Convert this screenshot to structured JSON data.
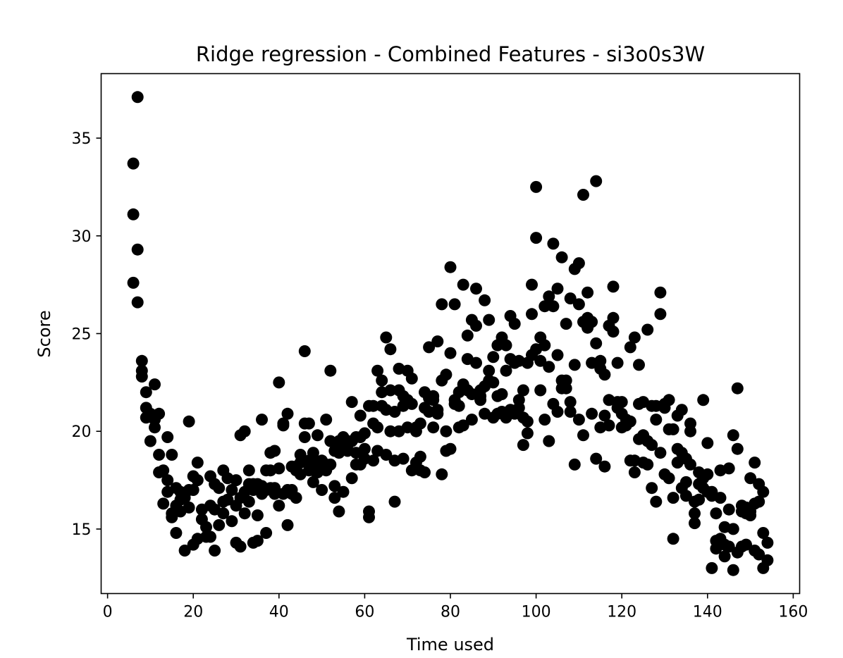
{
  "chart_data": {
    "type": "scatter",
    "title": "Ridge regression - Combined Features - si3o0s3W",
    "xlabel": "Time used",
    "ylabel": "Score",
    "xlim": [
      -1.5,
      161.5
    ],
    "ylim": [
      11.7,
      38.3
    ],
    "xticks": [
      0,
      20,
      40,
      60,
      80,
      100,
      120,
      140,
      160
    ],
    "yticks": [
      15,
      20,
      25,
      30,
      35
    ],
    "xtick_labels": [
      "0",
      "20",
      "40",
      "60",
      "80",
      "100",
      "120",
      "140",
      "160"
    ],
    "ytick_labels": [
      "15",
      "20",
      "25",
      "30",
      "35"
    ],
    "grid": false,
    "marker_color": "#000000",
    "points": [
      [
        7,
        37.1
      ],
      [
        6,
        33.7
      ],
      [
        6,
        31.1
      ],
      [
        7,
        29.3
      ],
      [
        6,
        27.6
      ],
      [
        7,
        26.6
      ],
      [
        8,
        23.6
      ],
      [
        8,
        23.1
      ],
      [
        8,
        22.8
      ],
      [
        9,
        22.0
      ],
      [
        9,
        21.2
      ],
      [
        9,
        20.7
      ],
      [
        10,
        19.5
      ],
      [
        10,
        20.9
      ],
      [
        11,
        22.4
      ],
      [
        11,
        20.6
      ],
      [
        11,
        20.2
      ],
      [
        12,
        20.9
      ],
      [
        12,
        18.8
      ],
      [
        12,
        17.9
      ],
      [
        13,
        18.0
      ],
      [
        13,
        16.3
      ],
      [
        14,
        16.9
      ],
      [
        14,
        17.5
      ],
      [
        14,
        19.7
      ],
      [
        15,
        18.8
      ],
      [
        15,
        15.8
      ],
      [
        15,
        15.6
      ],
      [
        16,
        16.2
      ],
      [
        16,
        14.8
      ],
      [
        16,
        17.1
      ],
      [
        17,
        16.5
      ],
      [
        17,
        15.9
      ],
      [
        17,
        16.9
      ],
      [
        18,
        16.6
      ],
      [
        18,
        13.9
      ],
      [
        19,
        17.0
      ],
      [
        19,
        16.1
      ],
      [
        19,
        20.5
      ],
      [
        20,
        17.7
      ],
      [
        20,
        17.0
      ],
      [
        20,
        14.2
      ],
      [
        21,
        18.4
      ],
      [
        21,
        17.5
      ],
      [
        21,
        14.5
      ],
      [
        22,
        15.5
      ],
      [
        22,
        16.0
      ],
      [
        23,
        15.1
      ],
      [
        23,
        14.6
      ],
      [
        24,
        16.2
      ],
      [
        24,
        17.7
      ],
      [
        24,
        14.6
      ],
      [
        25,
        16.0
      ],
      [
        25,
        13.9
      ],
      [
        25,
        17.3
      ],
      [
        26,
        17.1
      ],
      [
        26,
        15.2
      ],
      [
        27,
        16.4
      ],
      [
        27,
        18.0
      ],
      [
        27,
        15.8
      ],
      [
        28,
        16.5
      ],
      [
        28,
        17.6
      ],
      [
        29,
        17.0
      ],
      [
        29,
        15.4
      ],
      [
        30,
        17.5
      ],
      [
        30,
        16.2
      ],
      [
        30,
        14.3
      ],
      [
        31,
        16.6
      ],
      [
        31,
        19.8
      ],
      [
        31,
        14.1
      ],
      [
        32,
        20.0
      ],
      [
        32,
        16.9
      ],
      [
        32,
        15.8
      ],
      [
        33,
        18.0
      ],
      [
        33,
        17.3
      ],
      [
        33,
        16.4
      ],
      [
        34,
        17.0
      ],
      [
        34,
        14.3
      ],
      [
        34,
        17.3
      ],
      [
        35,
        15.7
      ],
      [
        35,
        14.4
      ],
      [
        35,
        17.3
      ],
      [
        36,
        20.6
      ],
      [
        36,
        17.2
      ],
      [
        36,
        16.8
      ],
      [
        37,
        18.0
      ],
      [
        37,
        14.8
      ],
      [
        37,
        17.0
      ],
      [
        38,
        18.9
      ],
      [
        38,
        18.0
      ],
      [
        38,
        17.1
      ],
      [
        39,
        19.0
      ],
      [
        39,
        17.1
      ],
      [
        39,
        16.8
      ],
      [
        40,
        22.5
      ],
      [
        40,
        18.1
      ],
      [
        40,
        16.2
      ],
      [
        41,
        20.3
      ],
      [
        41,
        20.4
      ],
      [
        41,
        16.8
      ],
      [
        42,
        20.9
      ],
      [
        42,
        17.0
      ],
      [
        42,
        15.2
      ],
      [
        43,
        18.2
      ],
      [
        43,
        16.8
      ],
      [
        43,
        17.0
      ],
      [
        44,
        16.6
      ],
      [
        44,
        18.0
      ],
      [
        44,
        18.2
      ],
      [
        45,
        18.4
      ],
      [
        45,
        18.8
      ],
      [
        45,
        17.8
      ],
      [
        46,
        24.1
      ],
      [
        46,
        20.4
      ],
      [
        46,
        19.7
      ],
      [
        47,
        20.4
      ],
      [
        47,
        18.0
      ],
      [
        47,
        18.5
      ],
      [
        48,
        18.9
      ],
      [
        48,
        17.4
      ],
      [
        48,
        18.0
      ],
      [
        49,
        19.8
      ],
      [
        49,
        18.4
      ],
      [
        49,
        17.9
      ],
      [
        50,
        18.5
      ],
      [
        50,
        17.0
      ],
      [
        50,
        18.2
      ],
      [
        51,
        20.6
      ],
      [
        51,
        18.3
      ],
      [
        51,
        18.0
      ],
      [
        52,
        23.1
      ],
      [
        52,
        19.5
      ],
      [
        52,
        18.3
      ],
      [
        53,
        19.0
      ],
      [
        53,
        17.2
      ],
      [
        53,
        16.6
      ],
      [
        54,
        19.5
      ],
      [
        54,
        18.9
      ],
      [
        54,
        15.9
      ],
      [
        55,
        19.4
      ],
      [
        55,
        19.7
      ],
      [
        55,
        16.9
      ],
      [
        56,
        19.5
      ],
      [
        56,
        19.3
      ],
      [
        56,
        19.0
      ],
      [
        57,
        21.5
      ],
      [
        57,
        19.5
      ],
      [
        57,
        17.6
      ],
      [
        58,
        19.7
      ],
      [
        58,
        18.9
      ],
      [
        58,
        18.3
      ],
      [
        59,
        20.8
      ],
      [
        59,
        19.7
      ],
      [
        59,
        18.3
      ],
      [
        60,
        19.9
      ],
      [
        60,
        19.1
      ],
      [
        60,
        18.6
      ],
      [
        61,
        21.3
      ],
      [
        61,
        15.6
      ],
      [
        61,
        15.9
      ],
      [
        62,
        21.3
      ],
      [
        62,
        20.4
      ],
      [
        62,
        18.5
      ],
      [
        63,
        23.1
      ],
      [
        63,
        20.2
      ],
      [
        63,
        19.0
      ],
      [
        64,
        22.6
      ],
      [
        64,
        22.0
      ],
      [
        64,
        21.3
      ],
      [
        65,
        24.8
      ],
      [
        65,
        21.1
      ],
      [
        65,
        18.8
      ],
      [
        66,
        24.2
      ],
      [
        66,
        22.1
      ],
      [
        66,
        20.0
      ],
      [
        67,
        21.0
      ],
      [
        67,
        18.5
      ],
      [
        67,
        16.4
      ],
      [
        68,
        23.2
      ],
      [
        68,
        22.1
      ],
      [
        68,
        20.0
      ],
      [
        69,
        21.8
      ],
      [
        69,
        18.6
      ],
      [
        69,
        21.3
      ],
      [
        70,
        23.1
      ],
      [
        70,
        21.6
      ],
      [
        70,
        20.2
      ],
      [
        71,
        22.7
      ],
      [
        71,
        21.4
      ],
      [
        71,
        18.0
      ],
      [
        72,
        20.0
      ],
      [
        72,
        20.2
      ],
      [
        72,
        18.4
      ],
      [
        73,
        20.4
      ],
      [
        73,
        18.7
      ],
      [
        73,
        18.0
      ],
      [
        74,
        22.0
      ],
      [
        74,
        21.2
      ],
      [
        74,
        17.9
      ],
      [
        75,
        24.3
      ],
      [
        75,
        21.7
      ],
      [
        75,
        21.0
      ],
      [
        76,
        21.6
      ],
      [
        76,
        21.8
      ],
      [
        76,
        20.2
      ],
      [
        77,
        24.6
      ],
      [
        77,
        21.1
      ],
      [
        77,
        20.9
      ],
      [
        78,
        26.5
      ],
      [
        78,
        22.6
      ],
      [
        78,
        17.8
      ],
      [
        79,
        22.9
      ],
      [
        79,
        20.0
      ],
      [
        79,
        19.0
      ],
      [
        80,
        28.4
      ],
      [
        80,
        24.0
      ],
      [
        80,
        19.1
      ],
      [
        81,
        26.5
      ],
      [
        81,
        21.6
      ],
      [
        81,
        21.4
      ],
      [
        82,
        22.0
      ],
      [
        82,
        21.3
      ],
      [
        82,
        20.2
      ],
      [
        83,
        27.5
      ],
      [
        83,
        22.4
      ],
      [
        83,
        20.3
      ],
      [
        84,
        24.9
      ],
      [
        84,
        23.7
      ],
      [
        84,
        22.1
      ],
      [
        85,
        25.7
      ],
      [
        85,
        21.9
      ],
      [
        85,
        20.6
      ],
      [
        86,
        27.3
      ],
      [
        86,
        25.4
      ],
      [
        86,
        23.5
      ],
      [
        87,
        22.1
      ],
      [
        87,
        21.8
      ],
      [
        87,
        21.6
      ],
      [
        88,
        26.7
      ],
      [
        88,
        22.3
      ],
      [
        88,
        20.9
      ],
      [
        89,
        25.7
      ],
      [
        89,
        23.1
      ],
      [
        89,
        22.6
      ],
      [
        90,
        23.8
      ],
      [
        90,
        22.5
      ],
      [
        90,
        20.7
      ],
      [
        91,
        24.4
      ],
      [
        91,
        21.8
      ],
      [
        91,
        20.9
      ],
      [
        92,
        24.8
      ],
      [
        92,
        21.9
      ],
      [
        92,
        21.0
      ],
      [
        93,
        24.4
      ],
      [
        93,
        23.1
      ],
      [
        93,
        20.7
      ],
      [
        94,
        25.9
      ],
      [
        94,
        23.7
      ],
      [
        94,
        21.1
      ],
      [
        95,
        25.5
      ],
      [
        95,
        23.5
      ],
      [
        95,
        20.9
      ],
      [
        96,
        23.6
      ],
      [
        96,
        21.6
      ],
      [
        96,
        21.2
      ],
      [
        97,
        22.1
      ],
      [
        97,
        20.7
      ],
      [
        97,
        19.3
      ],
      [
        98,
        23.5
      ],
      [
        98,
        20.5
      ],
      [
        98,
        19.9
      ],
      [
        99,
        27.5
      ],
      [
        99,
        26.0
      ],
      [
        99,
        23.9
      ],
      [
        100,
        32.5
      ],
      [
        100,
        29.9
      ],
      [
        100,
        24.2
      ],
      [
        101,
        24.8
      ],
      [
        101,
        23.6
      ],
      [
        101,
        22.1
      ],
      [
        102,
        26.4
      ],
      [
        102,
        24.4
      ],
      [
        102,
        20.6
      ],
      [
        103,
        26.9
      ],
      [
        103,
        23.3
      ],
      [
        103,
        19.5
      ],
      [
        104,
        29.6
      ],
      [
        104,
        26.4
      ],
      [
        104,
        21.4
      ],
      [
        105,
        27.3
      ],
      [
        105,
        23.9
      ],
      [
        105,
        21.0
      ],
      [
        106,
        28.9
      ],
      [
        106,
        22.6
      ],
      [
        106,
        22.2
      ],
      [
        107,
        25.5
      ],
      [
        107,
        22.6
      ],
      [
        107,
        22.2
      ],
      [
        108,
        26.8
      ],
      [
        108,
        21.5
      ],
      [
        108,
        21.0
      ],
      [
        109,
        28.3
      ],
      [
        109,
        23.4
      ],
      [
        109,
        18.3
      ],
      [
        110,
        28.6
      ],
      [
        110,
        26.5
      ],
      [
        110,
        20.6
      ],
      [
        111,
        32.1
      ],
      [
        111,
        25.6
      ],
      [
        111,
        19.8
      ],
      [
        112,
        27.1
      ],
      [
        112,
        25.8
      ],
      [
        112,
        25.3
      ],
      [
        113,
        25.6
      ],
      [
        113,
        23.5
      ],
      [
        113,
        20.9
      ],
      [
        114,
        32.8
      ],
      [
        114,
        24.5
      ],
      [
        114,
        18.6
      ],
      [
        115,
        23.6
      ],
      [
        115,
        23.2
      ],
      [
        115,
        20.2
      ],
      [
        116,
        22.9
      ],
      [
        116,
        20.8
      ],
      [
        116,
        18.2
      ],
      [
        117,
        25.4
      ],
      [
        117,
        21.6
      ],
      [
        117,
        20.3
      ],
      [
        118,
        27.4
      ],
      [
        118,
        25.8
      ],
      [
        118,
        25.1
      ],
      [
        119,
        23.5
      ],
      [
        119,
        21.5
      ],
      [
        119,
        21.2
      ],
      [
        120,
        21.5
      ],
      [
        120,
        20.9
      ],
      [
        120,
        20.2
      ],
      [
        121,
        20.6
      ],
      [
        121,
        20.3
      ],
      [
        121,
        20.4
      ],
      [
        122,
        24.3
      ],
      [
        122,
        18.5
      ],
      [
        122,
        20.5
      ],
      [
        123,
        24.8
      ],
      [
        123,
        18.5
      ],
      [
        123,
        17.9
      ],
      [
        124,
        23.4
      ],
      [
        124,
        21.4
      ],
      [
        124,
        19.6
      ],
      [
        125,
        21.5
      ],
      [
        125,
        19.8
      ],
      [
        125,
        18.4
      ],
      [
        126,
        25.2
      ],
      [
        126,
        19.5
      ],
      [
        126,
        18.3
      ],
      [
        127,
        21.3
      ],
      [
        127,
        19.3
      ],
      [
        127,
        17.1
      ],
      [
        128,
        21.3
      ],
      [
        128,
        20.6
      ],
      [
        128,
        16.4
      ],
      [
        129,
        27.1
      ],
      [
        129,
        26.0
      ],
      [
        129,
        18.9
      ],
      [
        130,
        21.2
      ],
      [
        130,
        21.4
      ],
      [
        130,
        17.8
      ],
      [
        131,
        21.6
      ],
      [
        131,
        20.1
      ],
      [
        131,
        17.6
      ],
      [
        132,
        20.1
      ],
      [
        132,
        16.6
      ],
      [
        132,
        14.5
      ],
      [
        133,
        20.8
      ],
      [
        133,
        19.1
      ],
      [
        133,
        18.4
      ],
      [
        134,
        21.1
      ],
      [
        134,
        18.9
      ],
      [
        134,
        17.1
      ],
      [
        135,
        18.6
      ],
      [
        135,
        17.4
      ],
      [
        135,
        16.7
      ],
      [
        136,
        20.4
      ],
      [
        136,
        20.0
      ],
      [
        136,
        18.3
      ],
      [
        137,
        16.4
      ],
      [
        137,
        15.8
      ],
      [
        137,
        15.3
      ],
      [
        138,
        17.9
      ],
      [
        138,
        17.3
      ],
      [
        138,
        16.5
      ],
      [
        139,
        21.6
      ],
      [
        139,
        17.6
      ],
      [
        139,
        17.1
      ],
      [
        140,
        19.4
      ],
      [
        140,
        17.8
      ],
      [
        140,
        16.9
      ],
      [
        141,
        16.9
      ],
      [
        141,
        16.7
      ],
      [
        141,
        13.0
      ],
      [
        142,
        15.8
      ],
      [
        142,
        14.4
      ],
      [
        142,
        14.0
      ],
      [
        143,
        18.0
      ],
      [
        143,
        16.6
      ],
      [
        143,
        14.5
      ],
      [
        144,
        15.1
      ],
      [
        144,
        14.2
      ],
      [
        144,
        13.6
      ],
      [
        145,
        18.1
      ],
      [
        145,
        16.0
      ],
      [
        145,
        14.1
      ],
      [
        146,
        19.8
      ],
      [
        146,
        15.0
      ],
      [
        146,
        12.9
      ],
      [
        147,
        22.2
      ],
      [
        147,
        19.1
      ],
      [
        147,
        13.8
      ],
      [
        148,
        16.2
      ],
      [
        148,
        15.9
      ],
      [
        148,
        14.1
      ],
      [
        149,
        16.1
      ],
      [
        149,
        15.8
      ],
      [
        149,
        14.2
      ],
      [
        150,
        17.6
      ],
      [
        150,
        15.9
      ],
      [
        150,
        15.7
      ],
      [
        151,
        18.4
      ],
      [
        151,
        16.3
      ],
      [
        151,
        13.9
      ],
      [
        152,
        17.3
      ],
      [
        152,
        16.4
      ],
      [
        152,
        13.7
      ],
      [
        153,
        16.9
      ],
      [
        153,
        14.8
      ],
      [
        153,
        13.0
      ],
      [
        154,
        14.3
      ],
      [
        154,
        13.4
      ]
    ]
  }
}
